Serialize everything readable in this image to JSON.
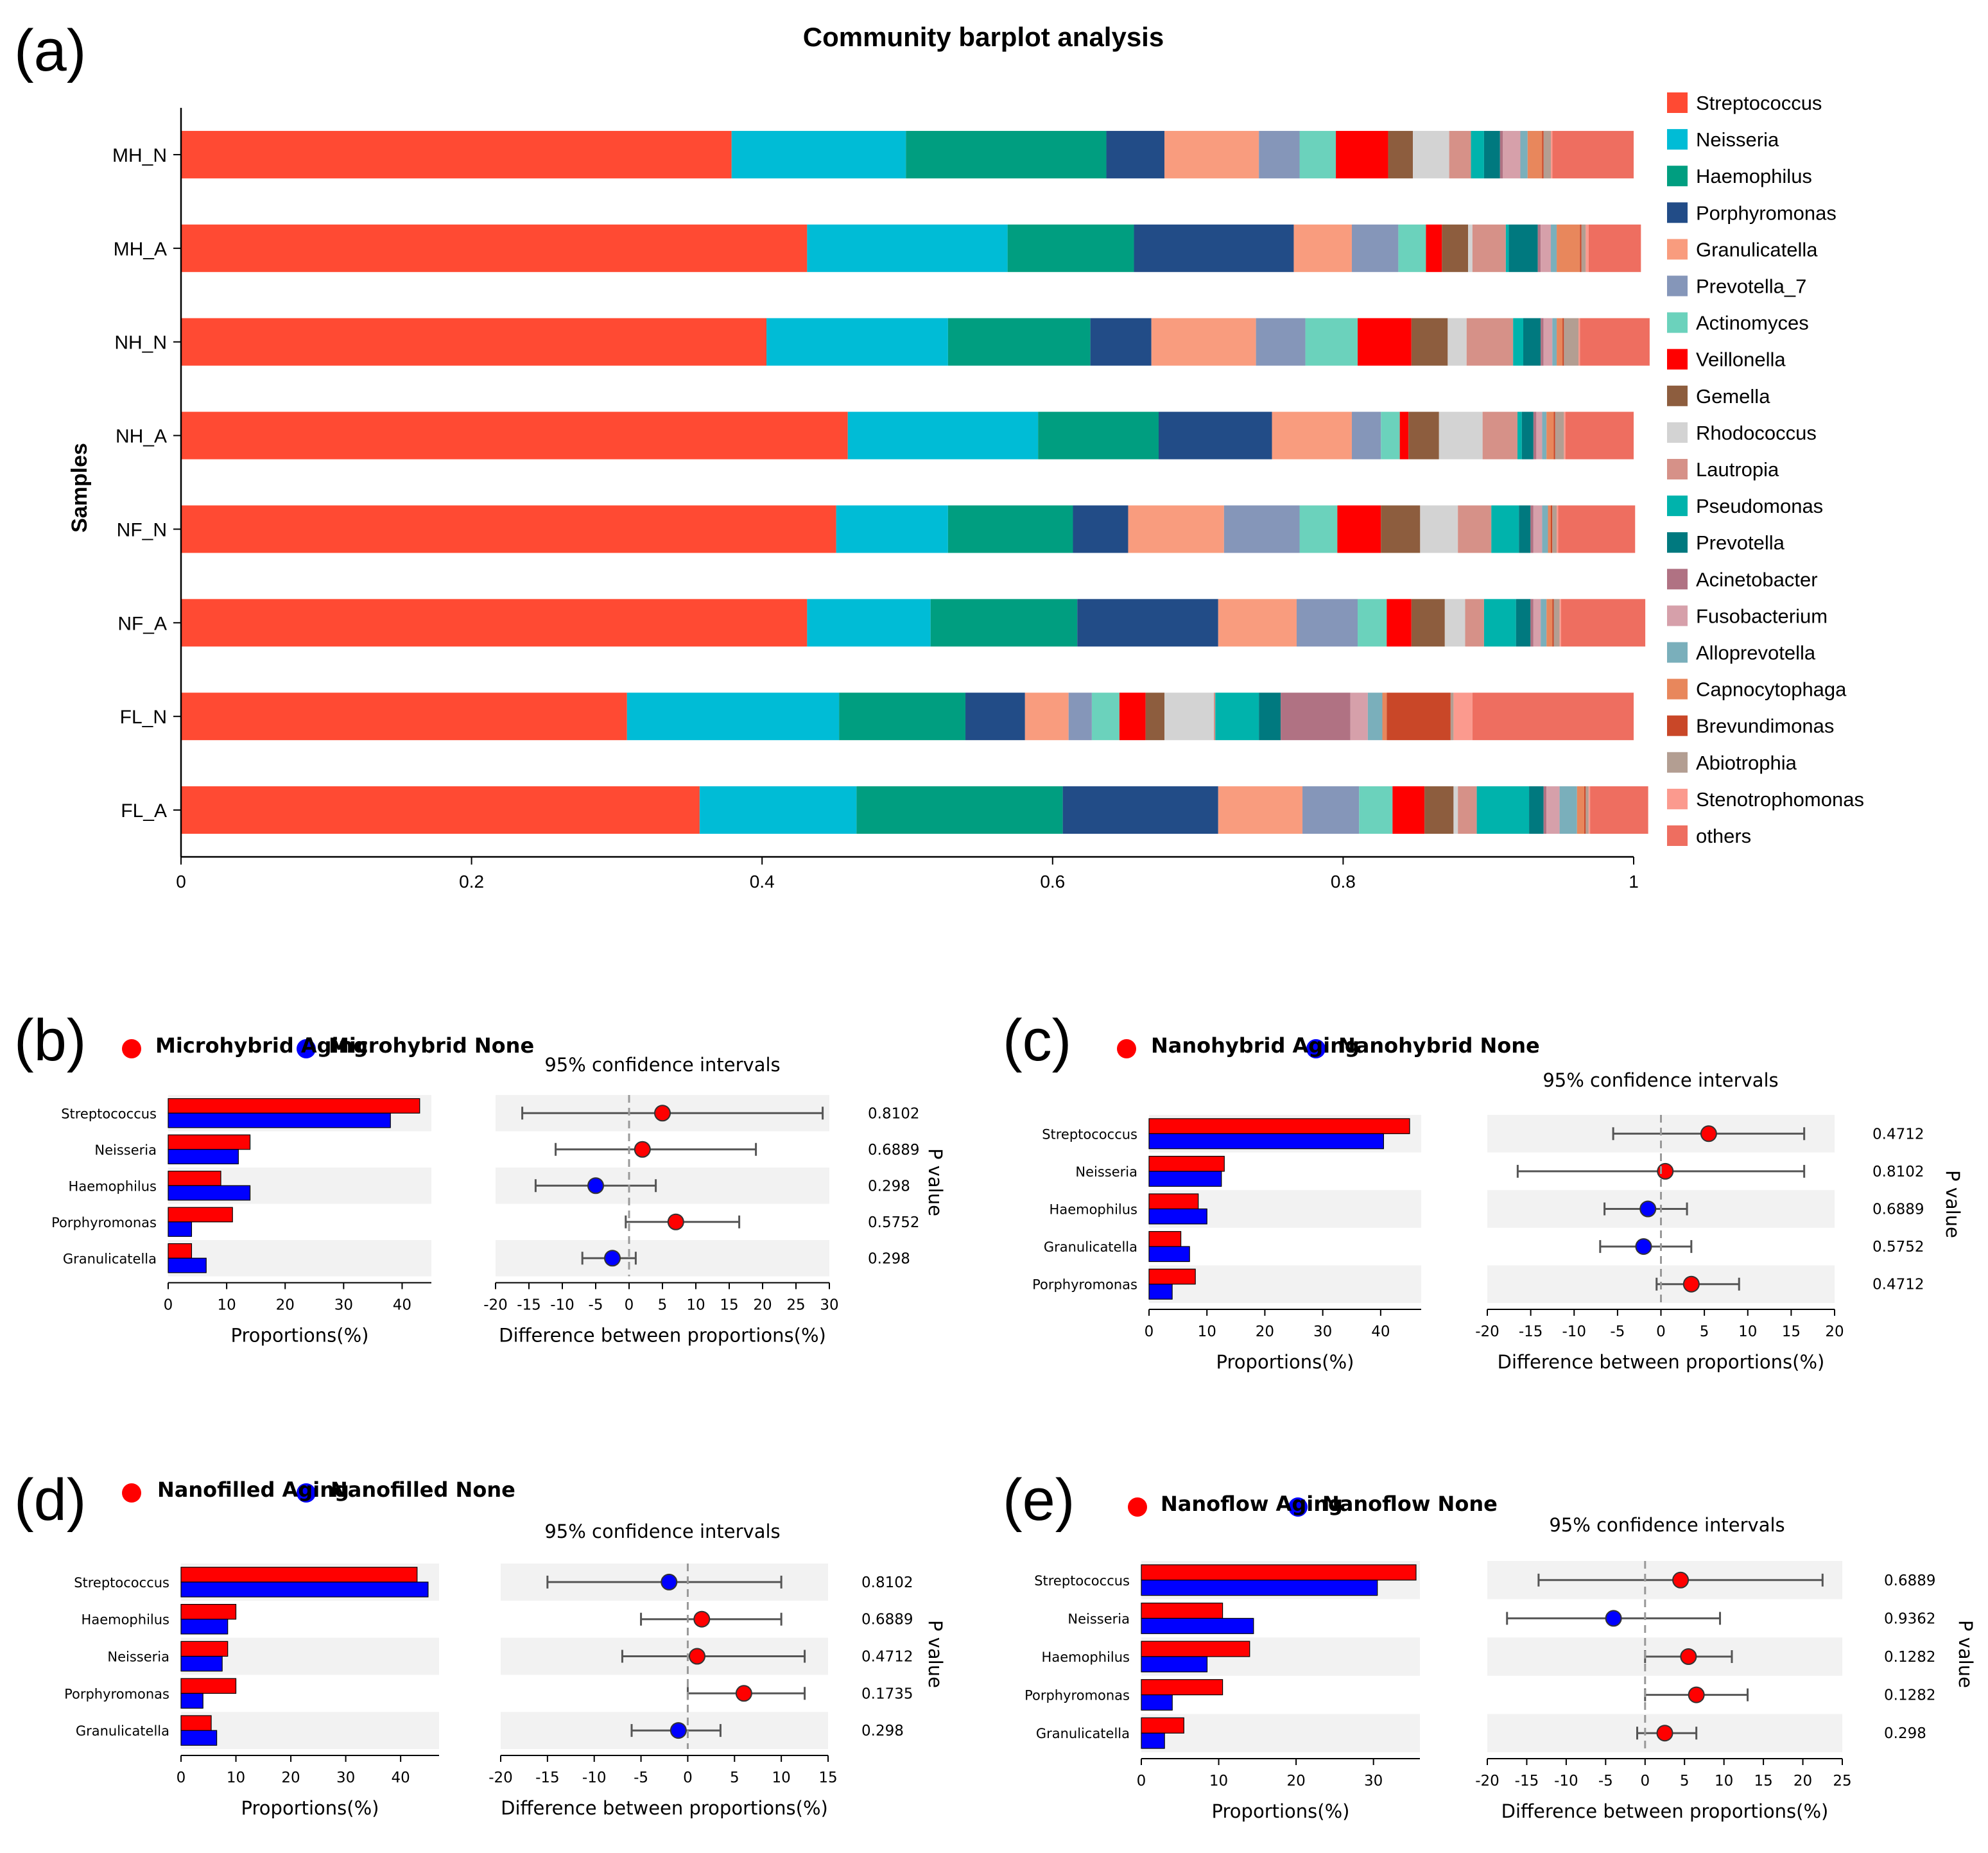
{
  "colors": {
    "aging": "#ff0000",
    "none": "#0000ff",
    "axis": "#000000",
    "band": "#f2f2f2",
    "error_bar": "#555555",
    "zero_line": "#999999"
  },
  "chart_data": [
    {
      "panel": "(a)",
      "type": "bar",
      "orientation": "horizontal",
      "stacked": true,
      "title": "Community barplot analysis",
      "ylabel": "Samples",
      "xlabel": "",
      "xlim": [
        0,
        1
      ],
      "xticks": [
        "0",
        "0.2",
        "0.4",
        "0.6",
        "0.8",
        "1"
      ],
      "categories": [
        "MH_N",
        "MH_A",
        "NH_N",
        "NH_A",
        "NF_N",
        "NF_A",
        "FL_N",
        "FL_A"
      ],
      "series": [
        {
          "name": "Streptococcus",
          "color": "#ff4a33",
          "values": [
            0.379,
            0.431,
            0.403,
            0.459,
            0.451,
            0.431,
            0.307,
            0.357
          ]
        },
        {
          "name": "Neisseria",
          "color": "#00bcd6",
          "values": [
            0.12,
            0.138,
            0.125,
            0.131,
            0.077,
            0.085,
            0.146,
            0.108
          ]
        },
        {
          "name": "Haemophilus",
          "color": "#009e80",
          "values": [
            0.138,
            0.087,
            0.098,
            0.083,
            0.086,
            0.101,
            0.087,
            0.142
          ]
        },
        {
          "name": "Porphyromonas",
          "color": "#224c87",
          "values": [
            0.04,
            0.11,
            0.042,
            0.078,
            0.038,
            0.097,
            0.041,
            0.107
          ]
        },
        {
          "name": "Granulicatella",
          "color": "#f99c7e",
          "values": [
            0.065,
            0.04,
            0.072,
            0.055,
            0.066,
            0.054,
            0.03,
            0.058
          ]
        },
        {
          "name": "Prevotella_7",
          "color": "#8596b9",
          "values": [
            0.028,
            0.032,
            0.034,
            0.02,
            0.052,
            0.042,
            0.016,
            0.039
          ]
        },
        {
          "name": "Actinomyces",
          "color": "#6bd2bc",
          "values": [
            0.025,
            0.019,
            0.036,
            0.013,
            0.026,
            0.02,
            0.019,
            0.023
          ]
        },
        {
          "name": "Veillonella",
          "color": "#ff0000",
          "values": [
            0.036,
            0.011,
            0.037,
            0.006,
            0.03,
            0.017,
            0.018,
            0.022
          ]
        },
        {
          "name": "Gemella",
          "color": "#8d5d3e",
          "values": [
            0.017,
            0.018,
            0.025,
            0.021,
            0.027,
            0.023,
            0.013,
            0.02
          ]
        },
        {
          "name": "Rhodococcus",
          "color": "#d3d3d3",
          "values": [
            0.025,
            0.003,
            0.013,
            0.03,
            0.026,
            0.014,
            0.034,
            0.003
          ]
        },
        {
          "name": "Lautropia",
          "color": "#d69188",
          "values": [
            0.015,
            0.023,
            0.032,
            0.024,
            0.023,
            0.013,
            0.001,
            0.013
          ]
        },
        {
          "name": "Pseudomonas",
          "color": "#00b3ac",
          "values": [
            0.009,
            0.002,
            0.007,
            0.003,
            0.019,
            0.022,
            0.03,
            0.036
          ]
        },
        {
          "name": "Prevotella",
          "color": "#00797f",
          "values": [
            0.011,
            0.02,
            0.012,
            0.008,
            0.008,
            0.01,
            0.015,
            0.01
          ]
        },
        {
          "name": "Acinetobacter",
          "color": "#b07283",
          "values": [
            0.002,
            0.002,
            0.002,
            0.002,
            0.002,
            0.002,
            0.048,
            0.002
          ]
        },
        {
          "name": "Fusobacterium",
          "color": "#d6a0aa",
          "values": [
            0.012,
            0.007,
            0.006,
            0.004,
            0.006,
            0.005,
            0.012,
            0.009
          ]
        },
        {
          "name": "Alloprevotella",
          "color": "#7aafbb",
          "values": [
            0.005,
            0.004,
            0.003,
            0.003,
            0.004,
            0.004,
            0.01,
            0.012
          ]
        },
        {
          "name": "Capnocytophaga",
          "color": "#e8875c",
          "values": [
            0.01,
            0.016,
            0.004,
            0.005,
            0.002,
            0.004,
            0.003,
            0.005
          ]
        },
        {
          "name": "Brevundimonas",
          "color": "#c94728",
          "values": [
            0.001,
            0.001,
            0.001,
            0.001,
            0.001,
            0.001,
            0.044,
            0.001
          ]
        },
        {
          "name": "Abiotrophia",
          "color": "#b39e92",
          "values": [
            0.005,
            0.003,
            0.01,
            0.006,
            0.003,
            0.004,
            0.002,
            0.002
          ]
        },
        {
          "name": "Stenotrophomonas",
          "color": "#fb9a8e",
          "values": [
            0.001,
            0.002,
            0.001,
            0.001,
            0.001,
            0.001,
            0.013,
            0.001
          ]
        },
        {
          "name": "others",
          "color": "#ee6e60",
          "values": [
            0.056,
            0.036,
            0.048,
            0.047,
            0.053,
            0.058,
            0.111,
            0.04
          ]
        }
      ]
    },
    {
      "panel": "(b)",
      "type": "bar",
      "legend": [
        "Microhybrid Aging",
        "Microhybrid None"
      ],
      "ci_title": "95% confidence intervals",
      "xlabel": "Proportions(%)",
      "ci_xlabel": "Difference between proportions(%)",
      "pvalue_label": "P value",
      "categories": [
        "Streptococcus",
        "Neisseria",
        "Haemophilus",
        "Porphyromonas",
        "Granulicatella"
      ],
      "series": [
        {
          "name": "Aging",
          "values": [
            43,
            14,
            9,
            11,
            4
          ]
        },
        {
          "name": "None",
          "values": [
            38,
            12,
            14,
            4,
            6.5
          ]
        }
      ],
      "bar_xlim": [
        0,
        45
      ],
      "bar_xticks": [
        0,
        10,
        20,
        30,
        40
      ],
      "ci_xlim": [
        -20,
        30
      ],
      "ci_xticks": [
        -20,
        -15,
        -10,
        -5,
        0,
        5,
        10,
        15,
        20,
        25,
        30
      ],
      "ci": [
        {
          "diff": 5,
          "low": -16,
          "high": 29,
          "higher": "Aging"
        },
        {
          "diff": 2,
          "low": -11,
          "high": 19,
          "higher": "Aging"
        },
        {
          "diff": -5,
          "low": -14,
          "high": 4,
          "higher": "None"
        },
        {
          "diff": 7,
          "low": -0.5,
          "high": 16.5,
          "higher": "Aging"
        },
        {
          "diff": -2.5,
          "low": -7,
          "high": 1,
          "higher": "None"
        }
      ],
      "p_values": [
        "0.8102",
        "0.6889",
        "0.298",
        "0.5752",
        "0.298"
      ]
    },
    {
      "panel": "(c)",
      "type": "bar",
      "legend": [
        "Nanohybrid Aging",
        "Nanohybrid None"
      ],
      "ci_title": "95% confidence intervals",
      "xlabel": "Proportions(%)",
      "ci_xlabel": "Difference between proportions(%)",
      "pvalue_label": "P value",
      "categories": [
        "Streptococcus",
        "Neisseria",
        "Haemophilus",
        "Granulicatella",
        "Porphyromonas"
      ],
      "series": [
        {
          "name": "Aging",
          "values": [
            45,
            13,
            8.5,
            5.5,
            8
          ]
        },
        {
          "name": "None",
          "values": [
            40.5,
            12.5,
            10,
            7,
            4
          ]
        }
      ],
      "bar_xlim": [
        0,
        47
      ],
      "bar_xticks": [
        0,
        10,
        20,
        30,
        40
      ],
      "ci_xlim": [
        -20,
        20
      ],
      "ci_xticks": [
        -20,
        -15,
        -10,
        -5,
        0,
        5,
        10,
        15,
        20
      ],
      "ci": [
        {
          "diff": 5.5,
          "low": -5.5,
          "high": 16.5,
          "higher": "Aging"
        },
        {
          "diff": 0.5,
          "low": -16.5,
          "high": 16.5,
          "higher": "Aging"
        },
        {
          "diff": -1.5,
          "low": -6.5,
          "high": 3,
          "higher": "None"
        },
        {
          "diff": -2,
          "low": -7,
          "high": 3.5,
          "higher": "None"
        },
        {
          "diff": 3.5,
          "low": -0.5,
          "high": 9,
          "higher": "Aging"
        }
      ],
      "p_values": [
        "0.4712",
        "0.8102",
        "0.6889",
        "0.5752",
        "0.4712"
      ]
    },
    {
      "panel": "(d)",
      "type": "bar",
      "legend": [
        "Nanofilled Aging",
        "Nanofilled None"
      ],
      "ci_title": "95% confidence intervals",
      "xlabel": "Proportions(%)",
      "ci_xlabel": "Difference between proportions(%)",
      "pvalue_label": "P value",
      "categories": [
        "Streptococcus",
        "Haemophilus",
        "Neisseria",
        "Porphyromonas",
        "Granulicatella"
      ],
      "series": [
        {
          "name": "Aging",
          "values": [
            43,
            10,
            8.5,
            10,
            5.5
          ]
        },
        {
          "name": "None",
          "values": [
            45,
            8.5,
            7.5,
            4,
            6.5
          ]
        }
      ],
      "bar_xlim": [
        0,
        47
      ],
      "bar_xticks": [
        0,
        10,
        20,
        30,
        40
      ],
      "ci_xlim": [
        -20,
        15
      ],
      "ci_xticks": [
        -20,
        -15,
        -10,
        -5,
        0,
        5,
        10,
        15
      ],
      "ci": [
        {
          "diff": -2,
          "low": -15,
          "high": 10,
          "higher": "None"
        },
        {
          "diff": 1.5,
          "low": -5,
          "high": 10,
          "higher": "Aging"
        },
        {
          "diff": 1,
          "low": -7,
          "high": 12.5,
          "higher": "Aging"
        },
        {
          "diff": 6,
          "low": 0,
          "high": 12.5,
          "higher": "Aging"
        },
        {
          "diff": -1,
          "low": -6,
          "high": 3.5,
          "higher": "None"
        }
      ],
      "p_values": [
        "0.8102",
        "0.6889",
        "0.4712",
        "0.1735",
        "0.298"
      ]
    },
    {
      "panel": "(e)",
      "type": "bar",
      "legend": [
        "Nanoflow Aging",
        "Nanoflow None"
      ],
      "ci_title": "95% confidence intervals",
      "xlabel": "Proportions(%)",
      "ci_xlabel": "Difference between proportions(%)",
      "pvalue_label": "P value",
      "categories": [
        "Streptococcus",
        "Neisseria",
        "Haemophilus",
        "Porphyromonas",
        "Granulicatella"
      ],
      "series": [
        {
          "name": "Aging",
          "values": [
            35.5,
            10.5,
            14,
            10.5,
            5.5
          ]
        },
        {
          "name": "None",
          "values": [
            30.5,
            14.5,
            8.5,
            4,
            3
          ]
        }
      ],
      "bar_xlim": [
        0,
        36
      ],
      "bar_xticks": [
        0,
        10,
        20,
        30
      ],
      "ci_xlim": [
        -20,
        25
      ],
      "ci_xticks": [
        -20,
        -15,
        -10,
        -5,
        0,
        5,
        10,
        15,
        20,
        25
      ],
      "ci": [
        {
          "diff": 4.5,
          "low": -13.5,
          "high": 22.5,
          "higher": "Aging"
        },
        {
          "diff": -4,
          "low": -17.5,
          "high": 9.5,
          "higher": "None"
        },
        {
          "diff": 5.5,
          "low": 0,
          "high": 11,
          "higher": "Aging"
        },
        {
          "diff": 6.5,
          "low": 0,
          "high": 13,
          "higher": "Aging"
        },
        {
          "diff": 2.5,
          "low": -1,
          "high": 6.5,
          "higher": "Aging"
        }
      ],
      "p_values": [
        "0.6889",
        "0.9362",
        "0.1282",
        "0.1282",
        "0.298"
      ]
    }
  ]
}
